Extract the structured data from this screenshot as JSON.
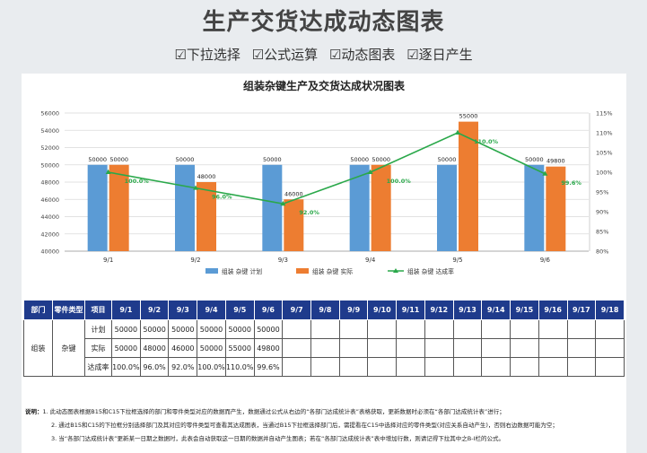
{
  "banner": {
    "title": "生产交货达成动态图表",
    "features": [
      "☑下拉选择",
      "☑公式运算",
      "☑动态图表",
      "☑逐日产生"
    ]
  },
  "chart_data": {
    "type": "bar",
    "title": "组装杂键生产及交货达成状况图表",
    "categories": [
      "9/1",
      "9/2",
      "9/3",
      "9/4",
      "9/5",
      "9/6"
    ],
    "series": [
      {
        "name": "组装 杂键 计划",
        "type": "bar",
        "color": "#5b9bd5",
        "values": [
          50000,
          50000,
          50000,
          50000,
          50000,
          50000
        ]
      },
      {
        "name": "组装 杂键 实际",
        "type": "bar",
        "color": "#ed7d31",
        "values": [
          50000,
          48000,
          46000,
          50000,
          55000,
          49800
        ]
      },
      {
        "name": "组装 杂键 达成率",
        "type": "line",
        "axis": "right",
        "color": "#2aa84a",
        "values": [
          100.0,
          96.0,
          92.0,
          100.0,
          110.0,
          99.6
        ]
      }
    ],
    "line_labels": [
      "100.0%",
      "96.0%",
      "92.0%",
      "100.0%",
      "110.0%",
      "99.6%"
    ],
    "ylim": [
      40000,
      56000
    ],
    "yticks": [
      "40000",
      "42000",
      "44000",
      "46000",
      "48000",
      "50000",
      "52000",
      "54000",
      "56000"
    ],
    "y2lim": [
      80,
      115
    ],
    "y2ticks": [
      "80%",
      "85%",
      "90%",
      "95%",
      "100%",
      "105%",
      "110%",
      "115%"
    ],
    "grid": true,
    "legend_position": "bottom"
  },
  "table": {
    "headers": [
      "部门",
      "零件类型",
      "项目",
      "9/1",
      "9/2",
      "9/3",
      "9/4",
      "9/5",
      "9/6",
      "9/7",
      "9/8",
      "9/9",
      "9/10",
      "9/11",
      "9/12",
      "9/13",
      "9/14",
      "9/15",
      "9/16",
      "9/17",
      "9/18"
    ],
    "department": "组装",
    "part_type": "杂键",
    "rows": [
      {
        "item": "计划",
        "values": [
          "50000",
          "50000",
          "50000",
          "50000",
          "50000",
          "50000"
        ]
      },
      {
        "item": "实际",
        "values": [
          "50000",
          "48000",
          "46000",
          "50000",
          "55000",
          "49800"
        ]
      },
      {
        "item": "达成率",
        "values": [
          "100.0%",
          "96.0%",
          "92.0%",
          "100.0%",
          "110.0%",
          "99.6%"
        ]
      }
    ],
    "header_color": "#1f3b8c"
  },
  "notes": {
    "prefix": "说明：",
    "lines": [
      "1. 此动态图表根据B15和C15下拉框选择的部门和零件类型对应的数据而产生，数据通过公式从右边的“各部门达成统计表”表格获取，更新数据时必须在“各部门达成统计表”进行；",
      "2. 通过B15和C15的下拉框分别选择部门及其对应的零件类型可查看其达成图表，当通过B15下拉框选择部门后，需提看在C15中选择对应的零件类型(对应关系自动产生)，否则右边数据可能为空；",
      "3. 当“各部门达成统计表”更新某一日期之数据时，此表会自动获取这一日期的数据并自动产生图表；若在“各部门达成统计表”表中增加行数，则请记得下拉其中之B-I栏的公式。"
    ]
  }
}
